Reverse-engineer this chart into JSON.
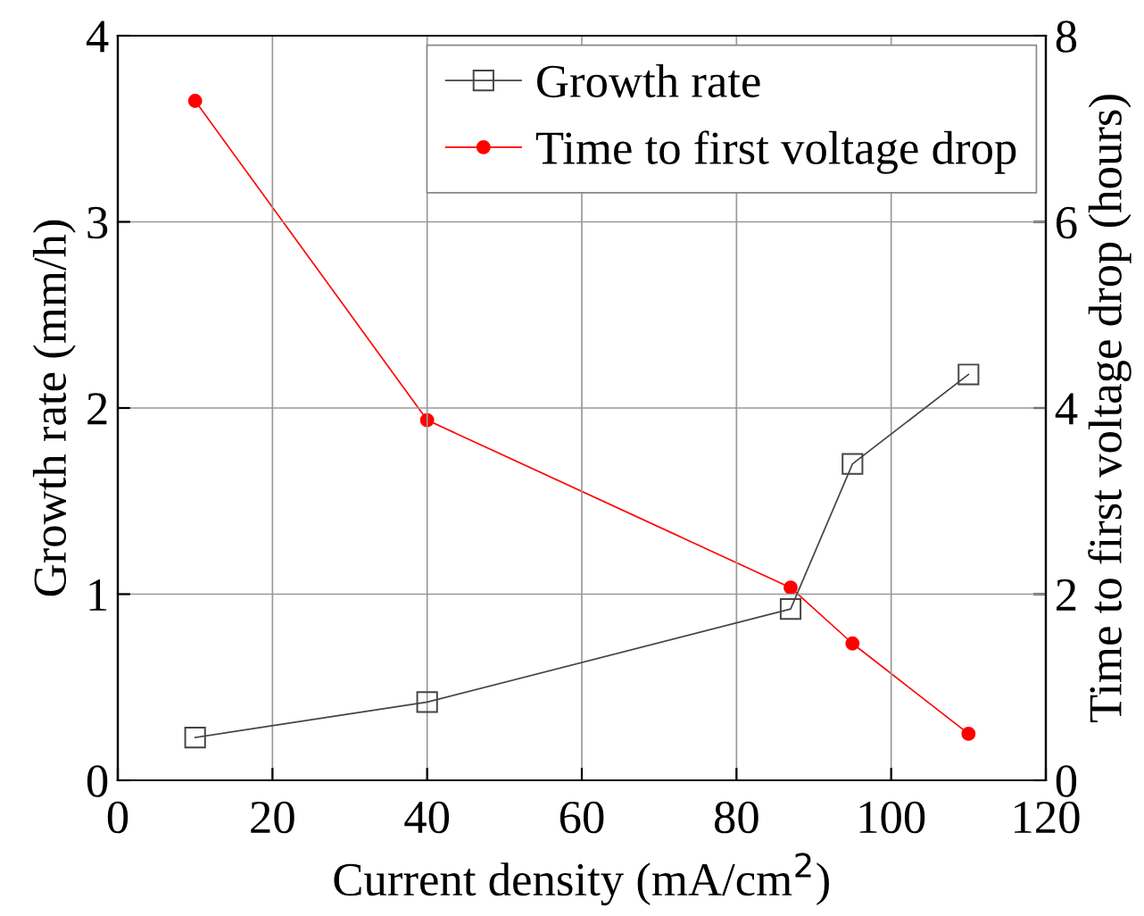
{
  "chart_data": {
    "type": "line",
    "xlabel": "Current density (mA/cm$^{2}$)",
    "ylabel": "Growth rate (mm/h)",
    "y2label": "Time to first voltage drop (hours)",
    "x": [
      10,
      40,
      87,
      95,
      110
    ],
    "series": [
      {
        "name": "Growth rate",
        "color": "#444444",
        "marker": "square",
        "values": [
          0.23,
          0.42,
          0.92,
          1.7,
          2.18
        ]
      },
      {
        "name": "Time to first voltage drop",
        "color": "#ff0000",
        "marker": "circle",
        "axis": "y2",
        "values": [
          7.3,
          3.87,
          2.07,
          1.47,
          0.5
        ]
      }
    ],
    "xlim": [
      0,
      120
    ],
    "xticks": [
      0,
      20,
      40,
      60,
      80,
      100,
      120
    ],
    "ylim": [
      0,
      4
    ],
    "yticks": [
      0,
      1,
      2,
      3,
      4
    ],
    "y2lim": [
      0,
      8
    ],
    "y2ticks": [
      0,
      2,
      4,
      6,
      8
    ],
    "grid": true,
    "legend": "top right",
    "line_style": "solid"
  }
}
